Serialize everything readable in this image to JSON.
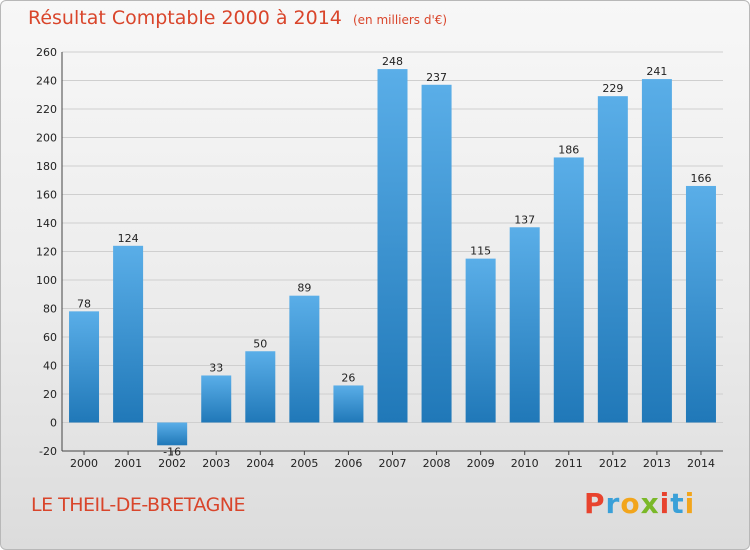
{
  "header": {
    "title": "Résultat Comptable 2000 à 2014",
    "subtitle": "(en milliers d'€)"
  },
  "footer": {
    "city": "LE THEIL-DE-BRETAGNE",
    "brand": {
      "letters": [
        "P",
        "r",
        "o",
        "x",
        "i",
        "t",
        "i"
      ],
      "colors": [
        "#e8432e",
        "#3aa0d8",
        "#f2a51c",
        "#7ab828",
        "#e8432e",
        "#3aa0d8",
        "#f2a51c"
      ]
    }
  },
  "colors": {
    "bar_light": "#5aaee8",
    "bar_dark": "#2078b8",
    "grid": "#cfcfcf",
    "axis": "#444444"
  },
  "chart_data": {
    "type": "bar",
    "categories": [
      "2000",
      "2001",
      "2002",
      "2003",
      "2004",
      "2005",
      "2006",
      "2007",
      "2008",
      "2009",
      "2010",
      "2011",
      "2012",
      "2013",
      "2014"
    ],
    "values": [
      78,
      124,
      -16,
      33,
      50,
      89,
      26,
      248,
      237,
      115,
      137,
      186,
      229,
      241,
      166
    ],
    "title": "Résultat Comptable 2000 à 2014",
    "ylim": [
      -20,
      260
    ],
    "yticks": [
      -20,
      0,
      20,
      40,
      60,
      80,
      100,
      120,
      140,
      160,
      180,
      200,
      220,
      240,
      260
    ],
    "grid": true
  }
}
